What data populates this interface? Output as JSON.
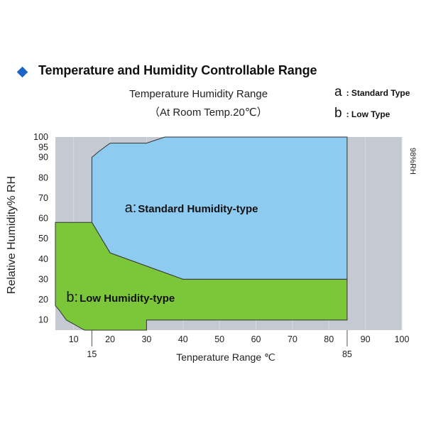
{
  "header": {
    "title": "Temperature and Humidity Controllable Range",
    "subtitle_line1": "Temperature Humidity Range",
    "subtitle_line2": "（At Room Temp.20℃）",
    "legend": [
      {
        "letter": "a",
        "text": ": Standard Type"
      },
      {
        "letter": "b",
        "text": ": Low Type"
      }
    ]
  },
  "colors": {
    "plot_bg": "#c5c9d1",
    "standard_fill": "#8ecbf0",
    "low_fill": "#7cc63a",
    "outline": "#333333",
    "title_diamond": "#1f63c6"
  },
  "chart_data": {
    "type": "area",
    "xlabel": "Tenperature Range ℃",
    "ylabel": "Relative Humidity% RH",
    "right_label": "98%RH",
    "xlim": [
      5,
      100
    ],
    "ylim": [
      5,
      100
    ],
    "x_ticks_lower": [
      10,
      20,
      30,
      40,
      50,
      60,
      70,
      80,
      90,
      100
    ],
    "x_ticks_upper": [
      15,
      85
    ],
    "y_ticks": [
      10,
      20,
      30,
      40,
      50,
      60,
      70,
      80,
      90,
      95,
      100
    ],
    "series": [
      {
        "name": "a: Standard Humidity-type",
        "label_prefix": "a:",
        "label_text": "Standard Humidity-type",
        "polygon": [
          [
            15,
            90
          ],
          [
            17,
            93
          ],
          [
            20,
            97
          ],
          [
            30,
            97
          ],
          [
            35,
            100
          ],
          [
            85,
            100
          ],
          [
            85,
            30
          ],
          [
            40,
            30
          ],
          [
            20,
            43
          ],
          [
            16,
            55
          ],
          [
            15,
            58
          ]
        ]
      },
      {
        "name": "b: Low Humidity-type",
        "label_prefix": "b:",
        "label_text": "Low Humidity-type",
        "polygon": [
          [
            5,
            58
          ],
          [
            15,
            58
          ],
          [
            16,
            55
          ],
          [
            20,
            43
          ],
          [
            40,
            30
          ],
          [
            85,
            30
          ],
          [
            85,
            10
          ],
          [
            30,
            10
          ],
          [
            30,
            5
          ],
          [
            13,
            5
          ],
          [
            8,
            10
          ],
          [
            6,
            15
          ],
          [
            5,
            17
          ]
        ]
      }
    ]
  }
}
